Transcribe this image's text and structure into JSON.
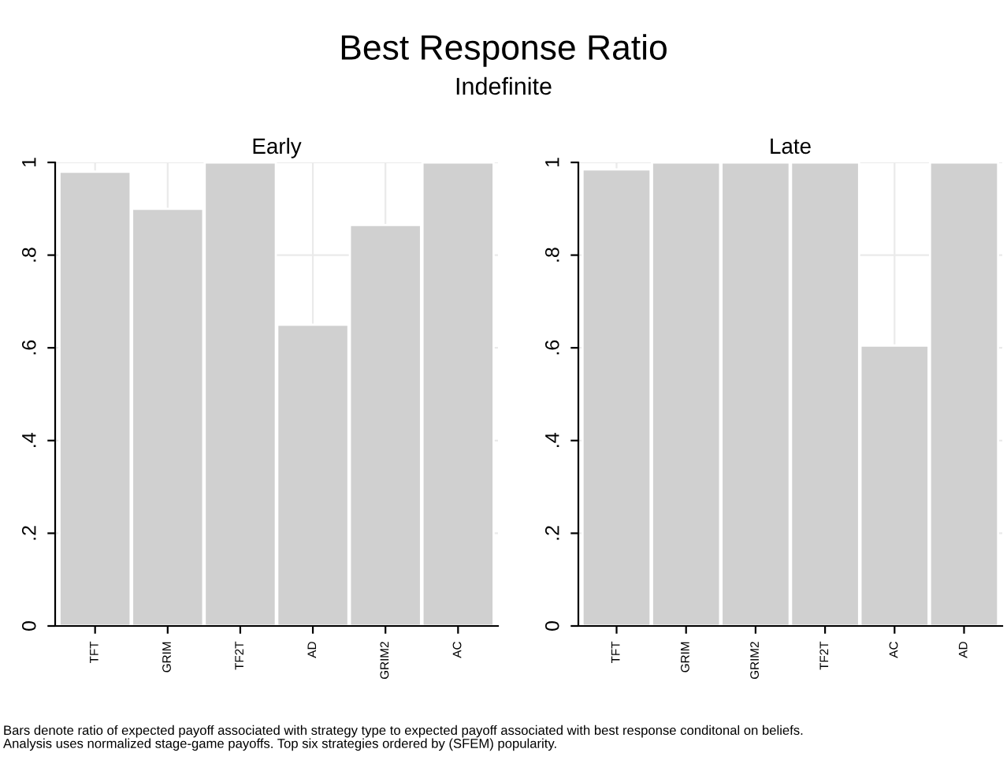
{
  "chart_data": [
    {
      "type": "bar",
      "title": "Early",
      "categories": [
        "TFT",
        "GRIM",
        "TF2T",
        "AD",
        "GRIM2",
        "AC"
      ],
      "values": [
        0.98,
        0.9,
        1.0,
        0.65,
        0.865,
        1.0
      ],
      "color": "#d0d0d0",
      "ylim": [
        0,
        1
      ],
      "yticks": [
        0,
        {
          "value": 0.2,
          "label": ".2"
        },
        {
          "value": 0.4,
          "label": ".4"
        },
        {
          "value": 0.6,
          "label": ".6"
        },
        {
          "value": 0.8,
          "label": ".8"
        },
        1
      ],
      "grid": true,
      "legend": false,
      "annotations": [
        "Best Response Ratio",
        "Indefinite",
        "Bars denote ratio of expected payoff associated with strategy type to expected payoff associated with best response conditonal on beliefs.\nAnalysis uses normalized stage-game payoffs. Top six strategies ordered by (SFEM) popularity."
      ]
    },
    {
      "type": "bar",
      "title": "Late",
      "categories": [
        "TFT",
        "GRIM",
        "GRIM2",
        "TF2T",
        "AC",
        "AD"
      ],
      "values": [
        0.985,
        1.0,
        1.0,
        1.0,
        0.605,
        1.0
      ],
      "color": "#d0d0d0",
      "ylim": [
        0,
        1
      ],
      "yticks": [
        0,
        {
          "value": 0.2,
          "label": ".2"
        },
        {
          "value": 0.4,
          "label": ".4"
        },
        {
          "value": 0.6,
          "label": ".6"
        },
        {
          "value": 0.8,
          "label": ".8"
        },
        1
      ],
      "grid": true,
      "legend": false
    }
  ]
}
